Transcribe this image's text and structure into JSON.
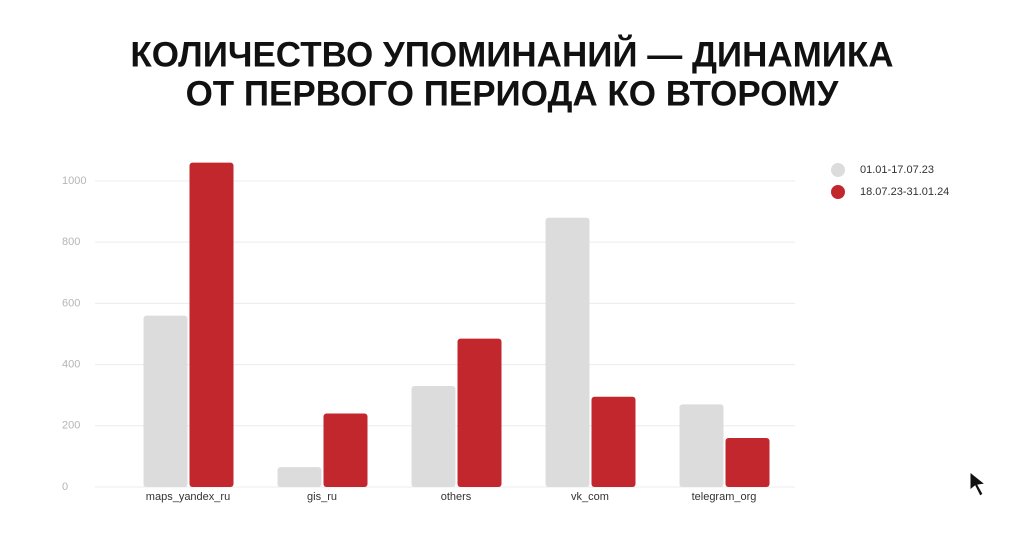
{
  "chart_data": {
    "type": "bar",
    "title": [
      "КОЛИЧЕСТВО УПОМИНАНИЙ — ДИНАМИКА",
      "ОТ ПЕРВОГО ПЕРИОДА КО ВТОРОМУ"
    ],
    "categories": [
      "maps_yandex_ru",
      "gis_ru",
      "others",
      "vk_com",
      "telegram_org"
    ],
    "series": [
      {
        "name": "01.01-17.07.23",
        "color": "#dcdcdc",
        "values": [
          560,
          65,
          330,
          880,
          270
        ]
      },
      {
        "name": "18.07.23-31.01.24",
        "color": "#c1272d",
        "values": [
          1060,
          240,
          485,
          295,
          160
        ]
      }
    ],
    "ylim": [
      0,
      1080
    ],
    "yticks": [
      0,
      200,
      400,
      600,
      800,
      1000
    ],
    "grid": true,
    "legend": "right"
  }
}
